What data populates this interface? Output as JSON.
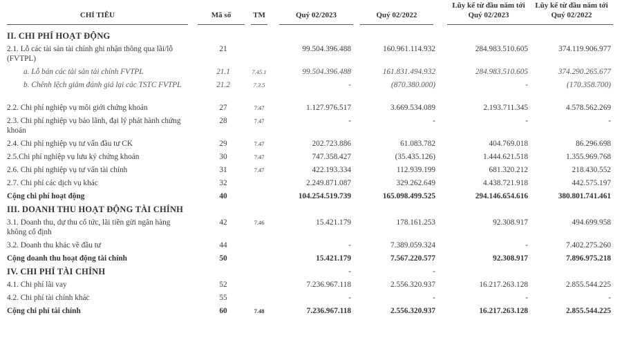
{
  "header": {
    "label": "CHỈ TIÊU",
    "code": "Mã số",
    "note": "TM",
    "columns": [
      "Quý 02/2023",
      "Quý 02/2022",
      "Lũy kế từ đầu năm tới Quý 02/2023",
      "Lũy kế từ đầu năm tới Quý 02/2022"
    ]
  },
  "rows": [
    {
      "label": "II. CHI PHÍ HOẠT ĐỘNG",
      "code": "",
      "note": "",
      "values": [
        "",
        "",
        "",
        ""
      ],
      "style": "section"
    },
    {
      "label": "2.1. Lỗ các tài sản tài chính ghi nhận thông qua lãi/lỗ (FVTPL)",
      "code": "21",
      "note": "",
      "values": [
        "99.504.396.488",
        "160.961.114.932",
        "284.983.510.605",
        "374.119.906.977"
      ],
      "style": "normal",
      "lines": 2
    },
    {
      "label": "a. Lỗ bán các tài sản tài chính FVTPL",
      "code": "21.1",
      "note": "7.45.1",
      "values": [
        "99.504.396.488",
        "161.831.494.932",
        "284.983.510.605",
        "374.290.265.677"
      ],
      "style": "italic"
    },
    {
      "label": "b. Chênh lệch giảm đánh giá lại các TSTC FVTPL",
      "code": "21.2",
      "note": "7.3.5",
      "values": [
        "-",
        "(870.380.000)",
        "-",
        "(170.358.700)"
      ],
      "style": "italic",
      "lines": 2
    },
    {
      "label": "2.2. Chi phí nghiệp vụ môi giới chứng khoán",
      "code": "27",
      "note": "7.47",
      "values": [
        "1.127.976.517",
        "3.669.534.089",
        "2.193.711.345",
        "4.578.562.269"
      ],
      "style": "normal"
    },
    {
      "label": "2.3. Chi phí nghiệp vụ bảo lãnh, đại lý phát hành chứng khoán",
      "code": "28",
      "note": "7.47",
      "values": [
        "-",
        "-",
        "-",
        "-"
      ],
      "style": "normal",
      "lines": 2
    },
    {
      "label": "2.4. Chi phí nghiệp vụ tư vấn đầu tư CK",
      "code": "29",
      "note": "7.47",
      "values": [
        "202.723.886",
        "61.083.782",
        "404.769.018",
        "86.296.698"
      ],
      "style": "normal"
    },
    {
      "label": "2.5.Chi phí nghiệp vụ lưu ký chứng khoán",
      "code": "30",
      "note": "7.47",
      "values": [
        "747.358.427",
        "(35.435.126)",
        "1.444.621.518",
        "1.355.969.768"
      ],
      "style": "normal"
    },
    {
      "label": "2.6. Chi phí nghiệp vụ tư vấn tài chính",
      "code": "31",
      "note": "7.47",
      "values": [
        "422.193.334",
        "112.939.199",
        "681.320.212",
        "218.430.552"
      ],
      "style": "normal"
    },
    {
      "label": "2.7. Chi phí các dịch vụ khác",
      "code": "32",
      "note": "",
      "values": [
        "2.249.871.087",
        "329.262.649",
        "4.438.721.918",
        "442.575.197"
      ],
      "style": "normal"
    },
    {
      "label": "Cộng chi phí hoạt động",
      "code": "40",
      "note": "",
      "values": [
        "104.254.519.739",
        "165.098.499.525",
        "294.146.654.616",
        "380.801.741.461"
      ],
      "style": "bold"
    },
    {
      "label": "III. DOANH THU HOẠT ĐỘNG TÀI CHÍNH",
      "code": "",
      "note": "",
      "values": [
        "",
        "",
        "",
        ""
      ],
      "style": "section"
    },
    {
      "label": "3.1. Doanh thu, dự thu cổ tức, lãi tiền gửi ngân hàng không cố định",
      "code": "42",
      "note": "7.46",
      "values": [
        "15.421.179",
        "178.161.253",
        "92.308.917",
        "494.699.958"
      ],
      "style": "normal",
      "lines": 2
    },
    {
      "label": "3.2. Doanh thu khác về đầu tư",
      "code": "44",
      "note": "",
      "values": [
        "-",
        "7.389.059.324",
        "-",
        "7.402.275.260"
      ],
      "style": "normal"
    },
    {
      "label": "Cộng doanh thu hoạt động tài chính",
      "code": "50",
      "note": "",
      "values": [
        "15.421.179",
        "7.567.220.577",
        "92.308.917",
        "7.896.975.218"
      ],
      "style": "bold"
    },
    {
      "label": "IV. CHI PHÍ TÀI CHÍNH",
      "code": "",
      "note": "",
      "values": [
        "-",
        "-",
        "",
        ""
      ],
      "style": "section"
    },
    {
      "label": "4.1. Chi phí lãi vay",
      "code": "52",
      "note": "",
      "values": [
        "7.236.967.118",
        "2.556.320.937",
        "16.217.263.128",
        "2.855.544.225"
      ],
      "style": "normal"
    },
    {
      "label": "4.2. Chi phí tài chính khác",
      "code": "55",
      "note": "",
      "values": [
        "-",
        "-",
        "-",
        "-"
      ],
      "style": "normal"
    },
    {
      "label": "Cộng chi phí tài chính",
      "code": "60",
      "note": "7.48",
      "values": [
        "7.236.967.118",
        "2.556.320.937",
        "16.217.263.128",
        "2.855.544.225"
      ],
      "style": "bold"
    }
  ]
}
